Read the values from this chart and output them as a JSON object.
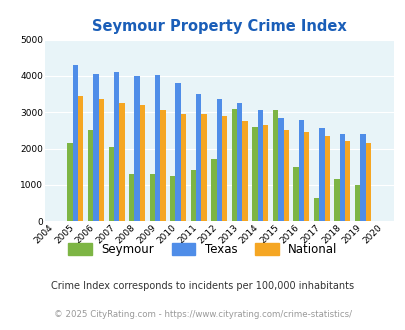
{
  "title": "Seymour Property Crime Index",
  "years": [
    2004,
    2005,
    2006,
    2007,
    2008,
    2009,
    2010,
    2011,
    2012,
    2013,
    2014,
    2015,
    2016,
    2017,
    2018,
    2019,
    2020
  ],
  "seymour": [
    0,
    2150,
    2500,
    2050,
    1300,
    1300,
    1250,
    1400,
    1700,
    3100,
    2600,
    3050,
    1500,
    650,
    1150,
    1000,
    0
  ],
  "texas": [
    0,
    4300,
    4050,
    4100,
    4000,
    4025,
    3800,
    3500,
    3375,
    3250,
    3050,
    2850,
    2775,
    2575,
    2400,
    2400,
    0
  ],
  "national": [
    0,
    3450,
    3350,
    3250,
    3200,
    3050,
    2950,
    2950,
    2900,
    2750,
    2650,
    2500,
    2450,
    2350,
    2200,
    2150,
    0
  ],
  "seymour_color": "#7db544",
  "texas_color": "#4f8de8",
  "national_color": "#f5a623",
  "bg_color": "#e8f4f8",
  "ylim": [
    0,
    5000
  ],
  "yticks": [
    0,
    1000,
    2000,
    3000,
    4000,
    5000
  ],
  "legend_labels": [
    "Seymour",
    "Texas",
    "National"
  ],
  "footnote1": "Crime Index corresponds to incidents per 100,000 inhabitants",
  "footnote2": "© 2025 CityRating.com - https://www.cityrating.com/crime-statistics/",
  "title_color": "#1a5eb8",
  "footnote1_color": "#333333",
  "footnote2_color": "#999999"
}
